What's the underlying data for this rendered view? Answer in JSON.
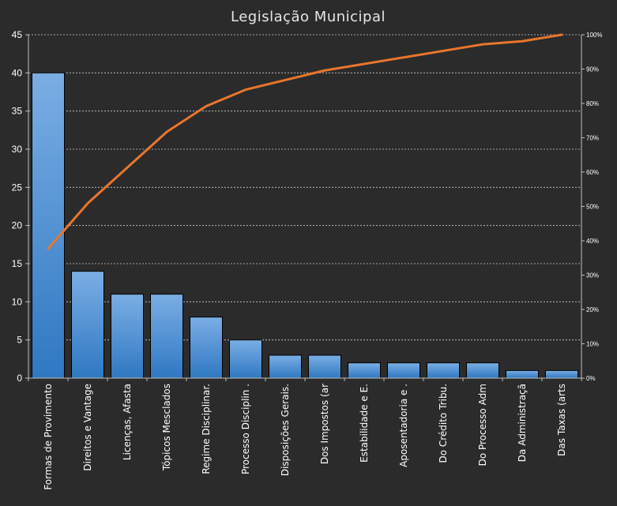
{
  "chart_data": {
    "type": "bar",
    "title": "Legislação  Municipal",
    "categories": [
      "Formas de Provimento",
      "Direitos e Vantage",
      "Licenças, Afasta",
      "Tópicos Mesclados",
      "Regime Disciplinar.",
      "Processo Disciplin .",
      "Disposições Gerais.",
      "Dos Impostos (ar",
      "Estabilidade e E.",
      "Aposentadoria  e  .",
      "Do Crédito Tribu.",
      "Do Processo Adm",
      "Da Administraçã",
      "Das Taxas (arts"
    ],
    "series": [
      {
        "type": "bar",
        "axis": "left",
        "values": [
          40,
          14,
          11,
          11,
          8,
          5,
          3,
          3,
          2,
          2,
          2,
          2,
          1,
          1
        ]
      },
      {
        "type": "line",
        "axis": "right",
        "values": [
          37.7,
          50.9,
          61.3,
          71.7,
          79.2,
          84.0,
          86.8,
          89.6,
          91.5,
          93.4,
          95.3,
          97.2,
          98.1,
          100
        ]
      }
    ],
    "ylim_left": [
      0,
      45
    ],
    "yticks_left": [
      "0",
      "5",
      "10",
      "15",
      "20",
      "25",
      "30",
      "35",
      "40",
      "45"
    ],
    "ylim_right": [
      0,
      100
    ],
    "yticks_right": [
      "0%",
      "10%",
      "20%",
      "30%",
      "40%",
      "50%",
      "60%",
      "70%",
      "80%",
      "90%",
      "100%"
    ],
    "grid": true,
    "colors": {
      "background": "#2b2b2b",
      "bar_top": "#7aaee4",
      "bar_bottom": "#2f78c2",
      "line": "#e8762c",
      "grid": "#d0d0d0",
      "text": "#ffffff"
    }
  }
}
